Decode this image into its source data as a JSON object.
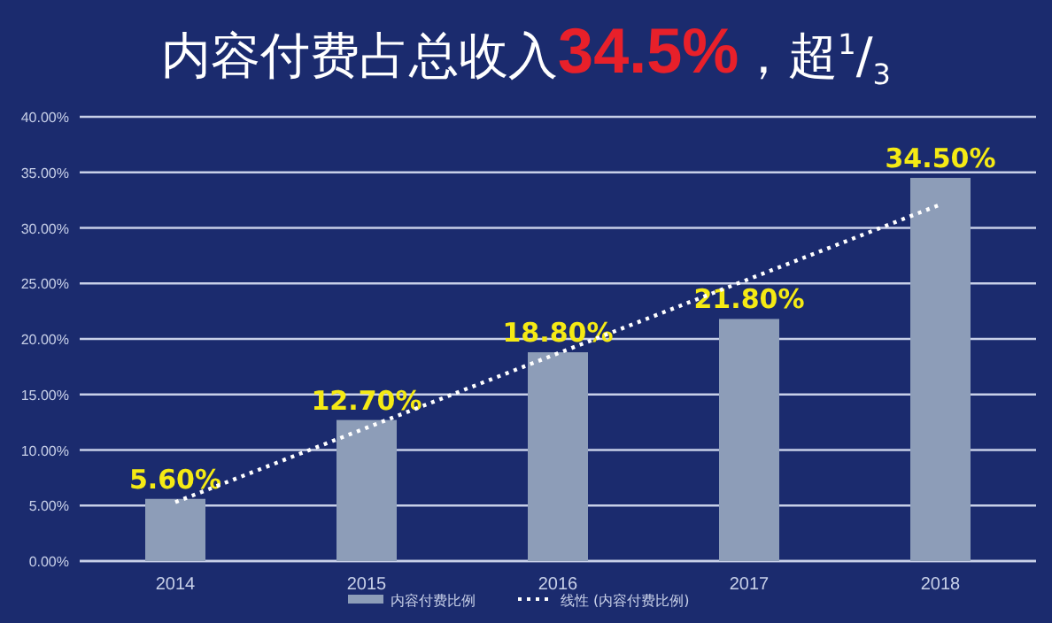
{
  "chart_data": {
    "type": "bar",
    "title": "内容付费占总收入**34.5%**，超$^{1}$/$_{3}$",
    "categories": [
      "2014",
      "2015",
      "2016",
      "2017",
      "2018"
    ],
    "series": [
      {
        "name": "内容付费比例",
        "color": "#8d9db8",
        "values": [
          5.6,
          12.7,
          18.8,
          21.8,
          34.5
        ],
        "value_labels": [
          "5.60%",
          "12.70%",
          "18.80%",
          "21.80%",
          "34.50%"
        ]
      },
      {
        "name": "线性 (内容付费比例)",
        "type": "line",
        "color": "#ffffff",
        "line_style": "dotted",
        "values": [
          5.3,
          12.0,
          18.7,
          25.4,
          32.1
        ]
      }
    ],
    "ylim": [
      0,
      40
    ],
    "yticks": [
      {
        "value": 0,
        "label": "0.00%"
      },
      {
        "value": 5,
        "label": "5.00%"
      },
      {
        "value": 10,
        "label": "10.00%"
      },
      {
        "value": 15,
        "label": "15.00%"
      },
      {
        "value": 20,
        "label": "20.00%"
      },
      {
        "value": 25,
        "label": "25.00%"
      },
      {
        "value": 30,
        "label": "30.00%"
      },
      {
        "value": 35,
        "label": "35.00%"
      },
      {
        "value": 40,
        "label": "40.00%"
      }
    ],
    "grid": "y",
    "legend": "bottom"
  }
}
